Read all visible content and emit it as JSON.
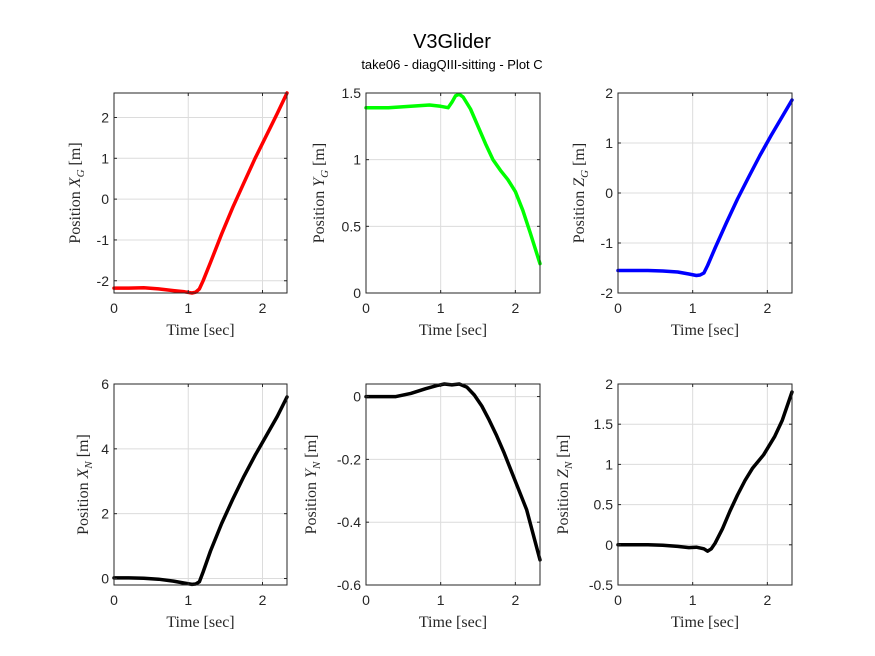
{
  "figure": {
    "title": "V3Glider",
    "subtitle": "take06 - diagQIII-sitting - Plot C"
  },
  "chart_data": [
    {
      "type": "line",
      "xlabel": "Time [sec]",
      "ylabel": "Position X_G [m]",
      "ylabel_main": "Position ",
      "ylabel_var": "X",
      "ylabel_sub": "G",
      "ylabel_unit": " [m]",
      "xlim": [
        0,
        2.33
      ],
      "ylim": [
        -2.3,
        2.6
      ],
      "xticks": [
        0,
        1,
        2
      ],
      "yticks": [
        -2,
        -1,
        0,
        1,
        2
      ],
      "xtick_labels": [
        "0",
        "1",
        "2"
      ],
      "ytick_labels": [
        "-2",
        "-1",
        "0",
        "1",
        "2"
      ],
      "grid": true,
      "color": "#ff0000",
      "x": [
        0,
        0.2,
        0.4,
        0.6,
        0.8,
        0.95,
        1.05,
        1.1,
        1.15,
        1.2,
        1.3,
        1.45,
        1.6,
        1.75,
        1.9,
        2.05,
        2.2,
        2.33
      ],
      "y": [
        -2.18,
        -2.18,
        -2.17,
        -2.2,
        -2.24,
        -2.27,
        -2.3,
        -2.28,
        -2.2,
        -2.0,
        -1.55,
        -0.85,
        -0.2,
        0.4,
        1.0,
        1.55,
        2.1,
        2.6
      ]
    },
    {
      "type": "line",
      "xlabel": "Time [sec]",
      "ylabel": "Position Y_G [m]",
      "ylabel_main": "Position ",
      "ylabel_var": "Y",
      "ylabel_sub": "G",
      "ylabel_unit": " [m]",
      "xlim": [
        0,
        2.33
      ],
      "ylim": [
        0,
        1.5
      ],
      "xticks": [
        0,
        1,
        2
      ],
      "yticks": [
        0,
        0.5,
        1,
        1.5
      ],
      "xtick_labels": [
        "0",
        "1",
        "2"
      ],
      "ytick_labels": [
        "0",
        "0.5",
        "1",
        "1.5"
      ],
      "grid": true,
      "color": "#00ff00",
      "x": [
        0,
        0.3,
        0.6,
        0.85,
        1.0,
        1.1,
        1.15,
        1.2,
        1.25,
        1.3,
        1.4,
        1.5,
        1.6,
        1.7,
        1.8,
        1.9,
        2.0,
        2.1,
        2.2,
        2.33
      ],
      "y": [
        1.39,
        1.39,
        1.4,
        1.41,
        1.4,
        1.39,
        1.43,
        1.48,
        1.49,
        1.47,
        1.38,
        1.25,
        1.12,
        1.0,
        0.92,
        0.85,
        0.76,
        0.62,
        0.45,
        0.22
      ]
    },
    {
      "type": "line",
      "xlabel": "Time [sec]",
      "ylabel": "Position Z_G [m]",
      "ylabel_main": "Position ",
      "ylabel_var": "Z",
      "ylabel_sub": "G",
      "ylabel_unit": " [m]",
      "xlim": [
        0,
        2.33
      ],
      "ylim": [
        -2,
        2
      ],
      "xticks": [
        0,
        1,
        2
      ],
      "yticks": [
        -2,
        -1,
        0,
        1,
        2
      ],
      "xtick_labels": [
        "0",
        "1",
        "2"
      ],
      "ytick_labels": [
        "-2",
        "-1",
        "0",
        "1",
        "2"
      ],
      "grid": true,
      "color": "#0000ff",
      "x": [
        0,
        0.2,
        0.4,
        0.6,
        0.8,
        0.95,
        1.05,
        1.1,
        1.15,
        1.2,
        1.3,
        1.45,
        1.6,
        1.75,
        1.9,
        2.05,
        2.2,
        2.33
      ],
      "y": [
        -1.55,
        -1.55,
        -1.55,
        -1.56,
        -1.58,
        -1.62,
        -1.65,
        -1.64,
        -1.6,
        -1.45,
        -1.1,
        -0.6,
        -0.12,
        0.32,
        0.75,
        1.15,
        1.53,
        1.86
      ]
    },
    {
      "type": "line",
      "xlabel": "Time [sec]",
      "ylabel": "Position X_N [m]",
      "ylabel_main": "Position ",
      "ylabel_var": "X",
      "ylabel_sub": "N",
      "ylabel_unit": " [m]",
      "xlim": [
        0,
        2.33
      ],
      "ylim": [
        -0.2,
        6
      ],
      "xticks": [
        0,
        1,
        2
      ],
      "yticks": [
        0,
        2,
        4,
        6
      ],
      "xtick_labels": [
        "0",
        "1",
        "2"
      ],
      "ytick_labels": [
        "0",
        "2",
        "4",
        "6"
      ],
      "grid": true,
      "color": "#000000",
      "x": [
        0,
        0.2,
        0.4,
        0.6,
        0.8,
        0.95,
        1.05,
        1.1,
        1.15,
        1.2,
        1.3,
        1.45,
        1.6,
        1.75,
        1.9,
        2.05,
        2.2,
        2.33
      ],
      "y": [
        0.02,
        0.02,
        0.01,
        -0.02,
        -0.08,
        -0.14,
        -0.18,
        -0.17,
        -0.1,
        0.2,
        0.85,
        1.7,
        2.45,
        3.15,
        3.8,
        4.4,
        5.0,
        5.6
      ]
    },
    {
      "type": "line",
      "xlabel": "Time [sec]",
      "ylabel": "Position Y_N [m]",
      "ylabel_main": "Position ",
      "ylabel_var": "Y",
      "ylabel_sub": "N",
      "ylabel_unit": " [m]",
      "xlim": [
        0,
        2.33
      ],
      "ylim": [
        -0.6,
        0.04
      ],
      "xticks": [
        0,
        1,
        2
      ],
      "yticks": [
        -0.6,
        -0.4,
        -0.2,
        0
      ],
      "xtick_labels": [
        "0",
        "1",
        "2"
      ],
      "ytick_labels": [
        "-0.6",
        "-0.4",
        "-0.2",
        "0"
      ],
      "grid": true,
      "color": "#000000",
      "x": [
        0,
        0.2,
        0.4,
        0.6,
        0.8,
        0.95,
        1.05,
        1.15,
        1.25,
        1.35,
        1.45,
        1.55,
        1.65,
        1.75,
        1.85,
        2.0,
        2.15,
        2.33
      ],
      "y": [
        0.0,
        0.0,
        0.0,
        0.01,
        0.025,
        0.035,
        0.04,
        0.037,
        0.04,
        0.03,
        0.005,
        -0.03,
        -0.075,
        -0.125,
        -0.18,
        -0.27,
        -0.36,
        -0.52
      ]
    },
    {
      "type": "line",
      "xlabel": "Time [sec]",
      "ylabel": "Position Z_N [m]",
      "ylabel_main": "Position ",
      "ylabel_var": "Z",
      "ylabel_sub": "N",
      "ylabel_unit": " [m]",
      "xlim": [
        0,
        2.33
      ],
      "ylim": [
        -0.5,
        2
      ],
      "xticks": [
        0,
        1,
        2
      ],
      "yticks": [
        -0.5,
        0,
        0.5,
        1,
        1.5,
        2
      ],
      "xtick_labels": [
        "0",
        "1",
        "2"
      ],
      "ytick_labels": [
        "-0.5",
        "0",
        "0.5",
        "1",
        "1.5",
        "2"
      ],
      "grid": true,
      "color": "#000000",
      "x": [
        0,
        0.2,
        0.4,
        0.6,
        0.8,
        0.95,
        1.05,
        1.15,
        1.2,
        1.25,
        1.3,
        1.4,
        1.5,
        1.6,
        1.7,
        1.8,
        1.95,
        2.1,
        2.2,
        2.33
      ],
      "y": [
        0.0,
        0.0,
        0.0,
        -0.005,
        -0.02,
        -0.035,
        -0.03,
        -0.05,
        -0.08,
        -0.05,
        0.02,
        0.2,
        0.42,
        0.62,
        0.8,
        0.95,
        1.12,
        1.35,
        1.55,
        1.9
      ]
    }
  ]
}
